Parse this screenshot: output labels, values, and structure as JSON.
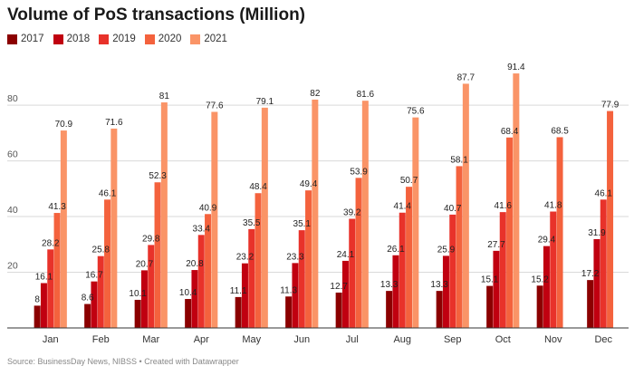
{
  "title": "Volume of PoS transactions (Million)",
  "source": "Source: BusinessDay News, NIBSS • Created with Datawrapper",
  "chart_data": {
    "type": "bar",
    "title": "Volume of PoS transactions (Million)",
    "xlabel": "",
    "ylabel": "",
    "ylim": [
      0,
      95
    ],
    "yticks": [
      20,
      40,
      60,
      80
    ],
    "grid": true,
    "legend_position": "top-left",
    "categories": [
      "Jan",
      "Feb",
      "Mar",
      "Apr",
      "May",
      "Jun",
      "Jul",
      "Aug",
      "Sep",
      "Oct",
      "Nov",
      "Dec"
    ],
    "series": [
      {
        "name": "2017",
        "color": "#8b0000",
        "values": [
          8,
          8.6,
          10.1,
          10.4,
          11.1,
          11.3,
          12.7,
          13.3,
          13.3,
          15.1,
          15.2,
          17.2
        ]
      },
      {
        "name": "2018",
        "color": "#c00010",
        "values": [
          16.1,
          16.7,
          20.7,
          20.8,
          23.2,
          23.3,
          24.1,
          26.1,
          25.9,
          27.7,
          29.4,
          31.9
        ]
      },
      {
        "name": "2019",
        "color": "#e8322a",
        "values": [
          28.2,
          25.8,
          29.8,
          33.4,
          35.5,
          35.1,
          39.2,
          41.4,
          40.7,
          41.6,
          41.8,
          46.1
        ]
      },
      {
        "name": "2020",
        "color": "#f4623d",
        "values": [
          41.3,
          46.1,
          52.3,
          40.9,
          48.4,
          49.4,
          53.9,
          50.7,
          58.1,
          68.4,
          68.5,
          77.9
        ]
      },
      {
        "name": "2021",
        "color": "#fa9467",
        "values": [
          70.9,
          71.6,
          81,
          77.6,
          79.1,
          82,
          81.6,
          75.6,
          87.7,
          91.4,
          null,
          null
        ]
      }
    ],
    "value_labels": [
      [
        "8",
        "16.1",
        "28.2",
        "41.3",
        "70.9"
      ],
      [
        "8.6",
        "16.7",
        "25.8",
        "46.1",
        "71.6"
      ],
      [
        "10.1",
        "20.7",
        "29.8",
        "52.3",
        "81"
      ],
      [
        "10.4",
        "20.8",
        "33.4",
        "40.9",
        "77.6"
      ],
      [
        "11.1",
        "23.2",
        "35.5",
        "48.4",
        "79.1"
      ],
      [
        "11.3",
        "23.3",
        "35.1",
        "49.4",
        "82"
      ],
      [
        "12.7",
        "24.1",
        "39.2",
        "53.9",
        "81.6"
      ],
      [
        "13.3",
        "26.1",
        "41.4",
        "50.7",
        "75.6"
      ],
      [
        "13.3",
        "25.9",
        "40.7",
        "58.1",
        "87.7"
      ],
      [
        "15.1",
        "27.7",
        "41.6",
        "68.4",
        "91.4"
      ],
      [
        "15.2",
        "29.4",
        "41.8",
        "68.5",
        ""
      ],
      [
        "17.2",
        "31.9",
        "46.1",
        "77.9",
        ""
      ]
    ]
  }
}
